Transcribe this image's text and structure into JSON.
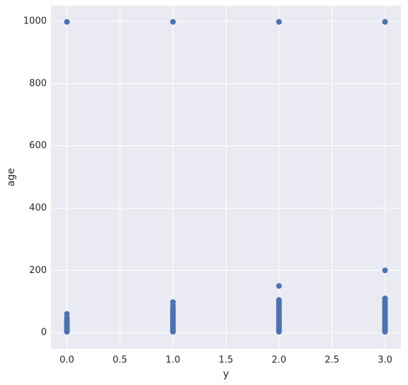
{
  "chart_data": {
    "type": "scatter",
    "xlabel": "y",
    "ylabel": "age",
    "color": "#4c72b0",
    "grid": true,
    "x": [
      0,
      0,
      0,
      0,
      0,
      0,
      0,
      0,
      0,
      0,
      0,
      0,
      0,
      1,
      1,
      1,
      1,
      1,
      1,
      1,
      1,
      1,
      1,
      1,
      1,
      1,
      1,
      1,
      1,
      1,
      1,
      1,
      2,
      2,
      2,
      2,
      2,
      2,
      2,
      2,
      2,
      2,
      2,
      2,
      2,
      2,
      2,
      2,
      2,
      2,
      2,
      2,
      2,
      2,
      2,
      2,
      3,
      3,
      3,
      3,
      3,
      3,
      3,
      3,
      3,
      3,
      3,
      3,
      3,
      3,
      3,
      3,
      3,
      3,
      3,
      3,
      3,
      3,
      3,
      3,
      3,
      3
    ],
    "values": [
      998,
      60,
      48,
      42,
      36,
      30,
      26,
      22,
      18,
      14,
      10,
      6,
      3,
      998,
      98,
      86,
      78,
      70,
      62,
      56,
      50,
      45,
      40,
      35,
      30,
      26,
      22,
      18,
      14,
      10,
      6,
      3,
      998,
      150,
      105,
      100,
      95,
      90,
      84,
      78,
      72,
      66,
      60,
      55,
      50,
      45,
      40,
      35,
      30,
      26,
      22,
      18,
      14,
      10,
      6,
      3,
      998,
      200,
      110,
      105,
      100,
      95,
      90,
      85,
      80,
      75,
      70,
      65,
      60,
      55,
      50,
      45,
      40,
      35,
      30,
      26,
      22,
      18,
      14,
      10,
      6,
      3
    ],
    "xlim": [
      -0.15,
      3.15
    ],
    "xticks": [
      {
        "value": 0,
        "label": "0.0"
      },
      {
        "value": 0.5,
        "label": "0.5"
      },
      {
        "value": 1,
        "label": "1.0"
      },
      {
        "value": 1.5,
        "label": "1.5"
      },
      {
        "value": 2,
        "label": "2.0"
      },
      {
        "value": 2.5,
        "label": "2.5"
      },
      {
        "value": 3,
        "label": "3.0"
      }
    ],
    "ylim": [
      -52,
      1050
    ],
    "yticks": [
      0,
      200,
      400,
      600,
      800,
      1000
    ]
  }
}
